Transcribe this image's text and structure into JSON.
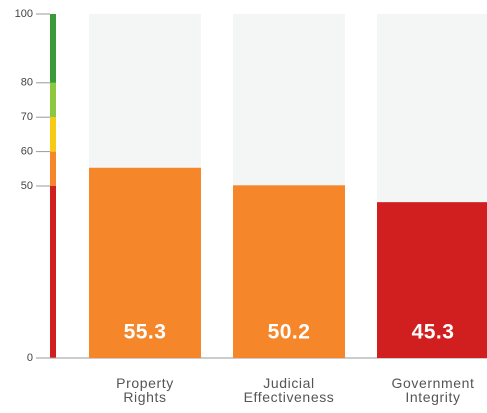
{
  "chart_data": {
    "type": "bar",
    "categories": [
      "Property Rights",
      "Judicial Effectiveness",
      "Government Integrity"
    ],
    "values": [
      55.3,
      50.2,
      45.3
    ],
    "colors": [
      "#f5862a",
      "#f5862a",
      "#d11f1f"
    ],
    "ylim": [
      0,
      100
    ],
    "yticks": [
      0,
      50,
      60,
      70,
      80,
      100
    ],
    "band_colors": [
      "#d11f1f",
      "#f5862a",
      "#f7cb15",
      "#8dc63f",
      "#3a9a3a"
    ],
    "background_color": "#f4f5f5"
  }
}
